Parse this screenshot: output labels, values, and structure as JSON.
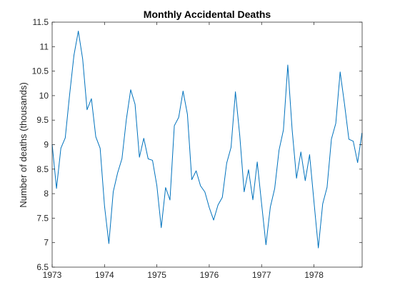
{
  "chart_data": {
    "type": "line",
    "title": "Monthly Accidental Deaths",
    "xlabel": "",
    "ylabel": "Number of deaths (thousands)",
    "xlim": [
      1973,
      1978.92
    ],
    "ylim": [
      6.5,
      11.5
    ],
    "xticks": [
      "1973",
      "1974",
      "1975",
      "1976",
      "1977",
      "1978"
    ],
    "yticks": [
      "6.5",
      "7",
      "7.5",
      "8",
      "8.5",
      "9",
      "9.5",
      "10",
      "10.5",
      "11",
      "11.5"
    ],
    "grid": false,
    "legend": "none",
    "color": "#0072BD",
    "series": [
      {
        "x_start": 1973,
        "x_step_months": 1,
        "values": [
          9.007,
          8.106,
          8.928,
          9.137,
          10.017,
          10.826,
          11.317,
          10.744,
          9.713,
          9.938,
          9.161,
          8.927,
          7.75,
          6.981,
          8.038,
          8.422,
          8.714,
          9.512,
          10.12,
          9.823,
          8.743,
          9.129,
          8.71,
          8.68,
          8.162,
          7.306,
          8.124,
          7.87,
          9.387,
          9.556,
          10.093,
          9.62,
          8.285,
          8.466,
          8.16,
          8.034,
          7.717,
          7.461,
          7.767,
          7.925,
          8.623,
          8.945,
          10.078,
          9.179,
          8.037,
          8.488,
          7.874,
          8.647,
          7.792,
          6.957,
          7.726,
          8.106,
          8.89,
          9.299,
          10.625,
          9.302,
          8.314,
          8.85,
          8.265,
          8.796,
          7.836,
          6.892,
          7.791,
          8.129,
          9.115,
          9.434,
          10.484,
          9.827,
          9.11,
          9.07,
          8.633,
          9.24
        ]
      }
    ]
  }
}
